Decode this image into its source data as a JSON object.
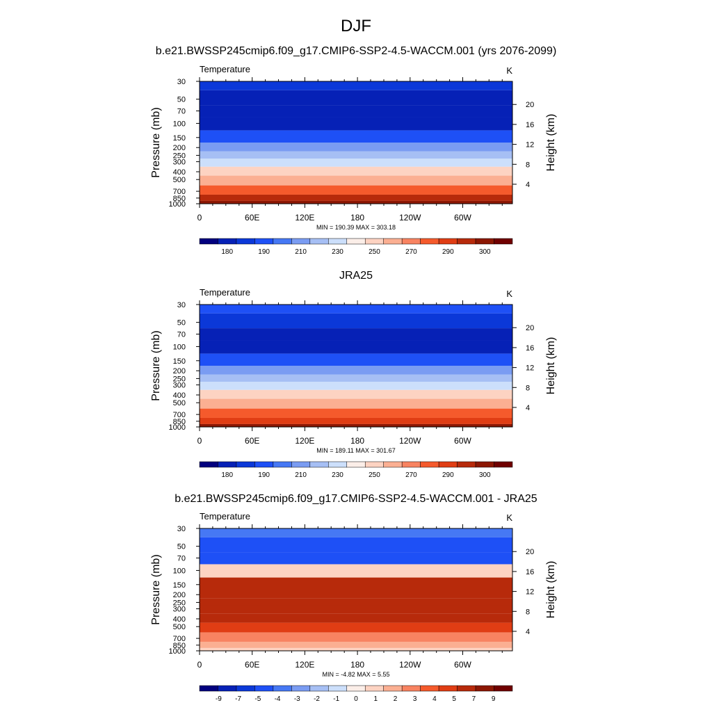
{
  "figure": {
    "title": "DJF"
  },
  "chart_data": [
    {
      "type": "heatmap",
      "title": "b.e21.BWSSP245cmip6.f09_g17.CMIP6-SSP2-4.5-WACCM.001 (yrs 2076-2099)",
      "variable": "Temperature",
      "units": "K",
      "xlabel": "",
      "ylabel": "Pressure (mb)",
      "ylabel_right": "Height (km)",
      "x_ticks": [
        "0",
        "60E",
        "120E",
        "180",
        "120W",
        "60W"
      ],
      "y_ticks": [
        "30",
        "50",
        "70",
        "100",
        "150",
        "200",
        "250",
        "300",
        "400",
        "500",
        "700",
        "850",
        "1000"
      ],
      "y_ticks_right": [
        "20",
        "16",
        "12",
        "8",
        "4"
      ],
      "stats": "MIN = 190.39  MAX = 303.18",
      "min": 190.39,
      "max": 303.18,
      "colorbar_labels": [
        "180",
        "190",
        "210",
        "230",
        "250",
        "270",
        "290",
        "300"
      ],
      "colors": [
        "#02007e",
        "#0621b6",
        "#0b38d8",
        "#1e50f6",
        "#4678f4",
        "#7a9cf2",
        "#a6bff4",
        "#ccdffb",
        "#fbeee8",
        "#fdd3c2",
        "#fbaf92",
        "#f88361",
        "#f55a2c",
        "#e03d14",
        "#b72a0b",
        "#8c1703",
        "#700000"
      ],
      "bands": [
        {
          "p": 30,
          "v": 197
        },
        {
          "p": 50,
          "v": 193
        },
        {
          "p": 70,
          "v": 191
        },
        {
          "p": 100,
          "v": 193
        },
        {
          "p": 150,
          "v": 205
        },
        {
          "p": 200,
          "v": 218
        },
        {
          "p": 250,
          "v": 229
        },
        {
          "p": 300,
          "v": 238
        },
        {
          "p": 400,
          "v": 252
        },
        {
          "p": 500,
          "v": 262
        },
        {
          "p": 700,
          "v": 276
        },
        {
          "p": 850,
          "v": 287
        },
        {
          "p": 1000,
          "v": 297
        }
      ]
    },
    {
      "type": "heatmap",
      "title": "JRA25",
      "variable": "Temperature",
      "units": "K",
      "xlabel": "",
      "ylabel": "Pressure (mb)",
      "ylabel_right": "Height (km)",
      "x_ticks": [
        "0",
        "60E",
        "120E",
        "180",
        "120W",
        "60W"
      ],
      "y_ticks": [
        "30",
        "50",
        "70",
        "100",
        "150",
        "200",
        "250",
        "300",
        "400",
        "500",
        "700",
        "850",
        "1000"
      ],
      "y_ticks_right": [
        "20",
        "16",
        "12",
        "8",
        "4"
      ],
      "stats": "MIN = 189.11  MAX = 301.67",
      "min": 189.11,
      "max": 301.67,
      "colorbar_labels": [
        "180",
        "190",
        "210",
        "230",
        "250",
        "270",
        "290",
        "300"
      ],
      "colors": [
        "#02007e",
        "#0621b6",
        "#0b38d8",
        "#1e50f6",
        "#4678f4",
        "#7a9cf2",
        "#a6bff4",
        "#ccdffb",
        "#fbeee8",
        "#fdd3c2",
        "#fbaf92",
        "#f88361",
        "#f55a2c",
        "#e03d14",
        "#b72a0b",
        "#8c1703",
        "#700000"
      ],
      "bands": [
        {
          "p": 30,
          "v": 203
        },
        {
          "p": 50,
          "v": 196
        },
        {
          "p": 70,
          "v": 192
        },
        {
          "p": 100,
          "v": 193
        },
        {
          "p": 150,
          "v": 203
        },
        {
          "p": 200,
          "v": 216
        },
        {
          "p": 250,
          "v": 226
        },
        {
          "p": 300,
          "v": 234
        },
        {
          "p": 400,
          "v": 248
        },
        {
          "p": 500,
          "v": 259
        },
        {
          "p": 700,
          "v": 273
        },
        {
          "p": 850,
          "v": 284
        },
        {
          "p": 1000,
          "v": 294
        }
      ]
    },
    {
      "type": "heatmap",
      "title": "b.e21.BWSSP245cmip6.f09_g17.CMIP6-SSP2-4.5-WACCM.001 - JRA25",
      "variable": "Temperature",
      "units": "K",
      "xlabel": "",
      "ylabel": "Pressure (mb)",
      "ylabel_right": "Height (km)",
      "x_ticks": [
        "0",
        "60E",
        "120E",
        "180",
        "120W",
        "60W"
      ],
      "y_ticks": [
        "30",
        "50",
        "70",
        "100",
        "150",
        "200",
        "250",
        "300",
        "400",
        "500",
        "700",
        "850",
        "1000"
      ],
      "y_ticks_right": [
        "20",
        "16",
        "12",
        "8",
        "4"
      ],
      "stats": "MIN =  -4.82  MAX =   5.55",
      "min": -4.82,
      "max": 5.55,
      "colorbar_labels": [
        "-9",
        "-7",
        "-5",
        "-4",
        "-3",
        "-2",
        "-1",
        "0",
        "1",
        "2",
        "3",
        "4",
        "5",
        "7",
        "9"
      ],
      "colors": [
        "#02007e",
        "#0621b6",
        "#0b38d8",
        "#1e50f6",
        "#4678f4",
        "#7a9cf2",
        "#a6bff4",
        "#ccdffb",
        "#fbeee8",
        "#fdd3c2",
        "#fbaf92",
        "#f88361",
        "#f55a2c",
        "#e03d14",
        "#b72a0b",
        "#8c1703",
        "#700000"
      ],
      "bands": [
        {
          "p": 30,
          "v": -2.5
        },
        {
          "p": 50,
          "v": -3.5
        },
        {
          "p": 70,
          "v": -3.5
        },
        {
          "p": 100,
          "v": 0.5
        },
        {
          "p": 150,
          "v": 4.5
        },
        {
          "p": 200,
          "v": 4.5
        },
        {
          "p": 250,
          "v": 4.5
        },
        {
          "p": 300,
          "v": 4.5
        },
        {
          "p": 400,
          "v": 4.5
        },
        {
          "p": 500,
          "v": 3.5
        },
        {
          "p": 700,
          "v": 2.5
        },
        {
          "p": 850,
          "v": 1.5
        },
        {
          "p": 1000,
          "v": 0.5
        }
      ]
    }
  ]
}
